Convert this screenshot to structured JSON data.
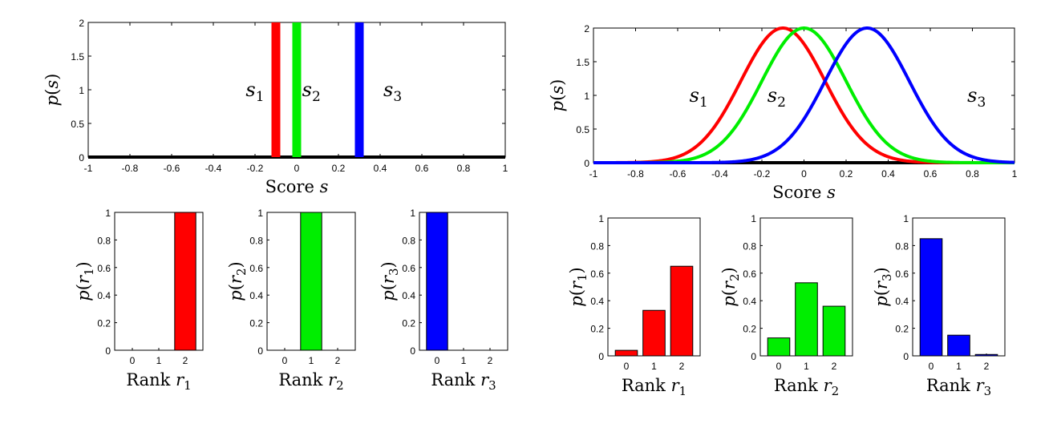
{
  "chart_data": [
    {
      "id": "score-left",
      "type": "line",
      "xlabel": "Score s",
      "ylabel": "p(s)",
      "xlim": [
        -1,
        1
      ],
      "ylim": [
        0,
        2
      ],
      "xticks": [
        "-1",
        "-0.8",
        "-0.6",
        "-0.4",
        "-0.2",
        "0",
        "0.2",
        "0.4",
        "0.6",
        "0.8",
        "1"
      ],
      "yticks": [
        "0",
        "0.5",
        "1",
        "1.5",
        "2"
      ],
      "annotations": [
        {
          "text": "s1",
          "x": -0.2,
          "y": 1.0
        },
        {
          "text": "s2",
          "x": 0.07,
          "y": 1.0
        },
        {
          "text": "s3",
          "x": 0.46,
          "y": 1.0
        }
      ],
      "series": [
        {
          "color": "#ff0000",
          "kind": "spike",
          "x": -0.1,
          "peak": 2
        },
        {
          "color": "#00ee00",
          "kind": "spike",
          "x": 0.0,
          "peak": 2
        },
        {
          "color": "#0000ff",
          "kind": "spike",
          "x": 0.3,
          "peak": 2
        }
      ],
      "grid": false
    },
    {
      "id": "score-right",
      "type": "line",
      "xlabel": "Score s",
      "ylabel": "p(s)",
      "xlim": [
        -1,
        1
      ],
      "ylim": [
        0,
        2
      ],
      "xticks": [
        "-1",
        "-0.8",
        "-0.6",
        "-0.4",
        "-0.2",
        "0",
        "0.2",
        "0.4",
        "0.6",
        "0.8",
        "1"
      ],
      "yticks": [
        "0",
        "0.5",
        "1",
        "1.5",
        "2"
      ],
      "annotations": [
        {
          "text": "s1",
          "x": -0.5,
          "y": 1.0
        },
        {
          "text": "s2",
          "x": -0.13,
          "y": 1.0
        },
        {
          "text": "s3",
          "x": 0.82,
          "y": 1.0
        }
      ],
      "series": [
        {
          "color": "#ff0000",
          "kind": "gaussian",
          "mean": -0.1,
          "sd": 0.2,
          "peak": 2
        },
        {
          "color": "#00ee00",
          "kind": "gaussian",
          "mean": 0.0,
          "sd": 0.2,
          "peak": 2
        },
        {
          "color": "#0000ff",
          "kind": "gaussian",
          "mean": 0.3,
          "sd": 0.2,
          "peak": 2
        }
      ],
      "grid": false
    },
    {
      "id": "rank-l1",
      "type": "bar",
      "categories": [
        "0",
        "1",
        "2"
      ],
      "values": [
        0,
        0,
        1
      ],
      "color": "#ff0000",
      "xlabel": "Rank r1",
      "ylabel": "p(r1)",
      "ylim": [
        0,
        1
      ],
      "yticks": [
        "0",
        "0.2",
        "0.4",
        "0.6",
        "0.8",
        "1"
      ],
      "grid": false
    },
    {
      "id": "rank-l2",
      "type": "bar",
      "categories": [
        "0",
        "1",
        "2"
      ],
      "values": [
        0,
        1,
        0
      ],
      "color": "#00ee00",
      "xlabel": "Rank r2",
      "ylabel": "p(r2)",
      "ylim": [
        0,
        1
      ],
      "yticks": [
        "0",
        "0.2",
        "0.4",
        "0.6",
        "0.8",
        "1"
      ],
      "grid": false
    },
    {
      "id": "rank-l3",
      "type": "bar",
      "categories": [
        "0",
        "1",
        "2"
      ],
      "values": [
        1,
        0,
        0
      ],
      "color": "#0000ff",
      "xlabel": "Rank r3",
      "ylabel": "p(r3)",
      "ylim": [
        0,
        1
      ],
      "yticks": [
        "0",
        "0.2",
        "0.4",
        "0.6",
        "0.8",
        "1"
      ],
      "grid": false
    },
    {
      "id": "rank-r1",
      "type": "bar",
      "categories": [
        "0",
        "1",
        "2"
      ],
      "values": [
        0.04,
        0.33,
        0.65
      ],
      "color": "#ff0000",
      "xlabel": "Rank r1",
      "ylabel": "p(r1)",
      "ylim": [
        0,
        1
      ],
      "yticks": [
        "0",
        "0.2",
        "0.4",
        "0.6",
        "0.8",
        "1"
      ],
      "grid": false
    },
    {
      "id": "rank-r2",
      "type": "bar",
      "categories": [
        "0",
        "1",
        "2"
      ],
      "values": [
        0.13,
        0.53,
        0.36
      ],
      "color": "#00ee00",
      "xlabel": "Rank r2",
      "ylabel": "p(r2)",
      "ylim": [
        0,
        1
      ],
      "yticks": [
        "0",
        "0.2",
        "0.4",
        "0.6",
        "0.8",
        "1"
      ],
      "grid": false
    },
    {
      "id": "rank-r3",
      "type": "bar",
      "categories": [
        "0",
        "1",
        "2"
      ],
      "values": [
        0.85,
        0.15,
        0.01
      ],
      "color": "#0000ff",
      "xlabel": "Rank r3",
      "ylabel": "p(r3)",
      "ylim": [
        0,
        1
      ],
      "yticks": [
        "0",
        "0.2",
        "0.4",
        "0.6",
        "0.8",
        "1"
      ],
      "grid": false
    }
  ]
}
